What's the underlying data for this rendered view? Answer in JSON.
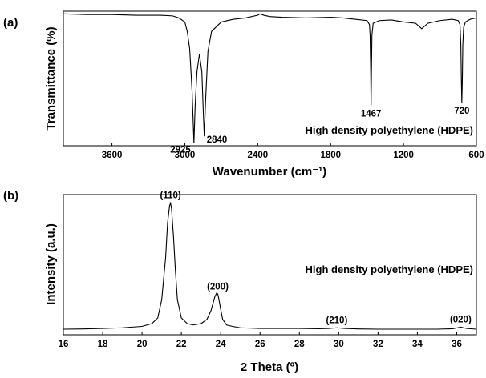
{
  "chart_data": [
    {
      "panel_label": "(a)",
      "type": "line",
      "title": "High density polyethylene (HDPE)",
      "xlabel": "Wavenumber (cm⁻¹)",
      "ylabel": "Transmittance (%)",
      "xlim": [
        4000,
        600
      ],
      "x_reversed": true,
      "ylim": [
        0,
        100
      ],
      "y_tick_labels": false,
      "x_ticks": [
        3600,
        3000,
        2400,
        1800,
        1200,
        600
      ],
      "x_tick_labels": [
        "3600",
        "3000",
        "2400",
        "1800",
        "1200",
        "600"
      ],
      "series": [
        {
          "x": [
            4000,
            3800,
            3600,
            3400,
            3200,
            3100,
            3050,
            3000,
            2980,
            2960,
            2940,
            2925,
            2915,
            2900,
            2880,
            2860,
            2850,
            2840,
            2830,
            2810,
            2780,
            2700,
            2600,
            2500,
            2400,
            2380,
            2350,
            2300,
            2200,
            2000,
            1800,
            1700,
            1600,
            1500,
            1480,
            1475,
            1470,
            1467,
            1464,
            1460,
            1450,
            1400,
            1300,
            1200,
            1100,
            1050,
            1000,
            900,
            800,
            750,
            735,
            728,
            724,
            720,
            716,
            712,
            705,
            690,
            650,
            600
          ],
          "y": [
            98,
            97.5,
            97.5,
            97,
            97,
            96.5,
            95,
            92,
            85,
            72,
            40,
            2,
            30,
            55,
            68,
            55,
            30,
            7,
            32,
            70,
            85,
            92,
            94,
            95,
            97,
            98,
            97,
            96,
            95.5,
            95,
            95.5,
            95,
            94,
            93,
            90,
            82,
            55,
            30,
            55,
            82,
            91,
            93,
            93.5,
            92,
            91,
            87,
            91,
            93,
            94,
            93,
            90,
            75,
            50,
            32,
            48,
            75,
            88,
            92,
            94,
            95
          ]
        }
      ],
      "annotations": [
        {
          "text": "2925",
          "x": 2925
        },
        {
          "text": "2840",
          "x": 2840
        },
        {
          "text": "1467",
          "x": 1467
        },
        {
          "text": "720",
          "x": 720
        }
      ]
    },
    {
      "panel_label": "(b)",
      "type": "line",
      "title": "High density polyethylene (HDPE)",
      "xlabel": "2 Theta (º)",
      "ylabel": "Intensity (a.u.)",
      "xlim": [
        16,
        37
      ],
      "ylim": [
        0,
        100
      ],
      "y_tick_labels": false,
      "x_ticks": [
        16,
        18,
        20,
        22,
        24,
        26,
        28,
        30,
        32,
        34,
        36
      ],
      "x_tick_labels": [
        "16",
        "18",
        "20",
        "22",
        "24",
        "26",
        "28",
        "30",
        "32",
        "34",
        "36"
      ],
      "series": [
        {
          "x": [
            16,
            17,
            18,
            19,
            19.5,
            20,
            20.5,
            20.8,
            21.0,
            21.2,
            21.3,
            21.4,
            21.45,
            21.5,
            21.6,
            21.7,
            21.8,
            22.0,
            22.3,
            22.6,
            23.0,
            23.3,
            23.5,
            23.7,
            23.8,
            23.85,
            23.9,
            24.0,
            24.1,
            24.3,
            24.6,
            25,
            26,
            27,
            28,
            29,
            29.5,
            29.9,
            30.3,
            31,
            32,
            33,
            34,
            35,
            35.8,
            36.2,
            36.5,
            37
          ],
          "y": [
            4,
            4.2,
            4.5,
            5,
            5.5,
            6,
            8,
            12,
            25,
            55,
            80,
            92,
            94,
            90,
            70,
            45,
            25,
            12,
            8,
            7,
            8,
            11,
            17,
            27,
            30,
            29,
            26,
            18,
            11,
            7,
            6,
            5,
            4.5,
            4.5,
            4.5,
            4.3,
            4.5,
            5,
            4.5,
            4.2,
            4,
            4,
            4,
            4,
            4.3,
            5.5,
            4.5,
            4
          ]
        }
      ],
      "annotations": [
        {
          "text": "(110)",
          "x": 21.45
        },
        {
          "text": "(200)",
          "x": 23.85
        },
        {
          "text": "(210)",
          "x": 29.9
        },
        {
          "text": "(020)",
          "x": 36.2
        }
      ]
    }
  ]
}
